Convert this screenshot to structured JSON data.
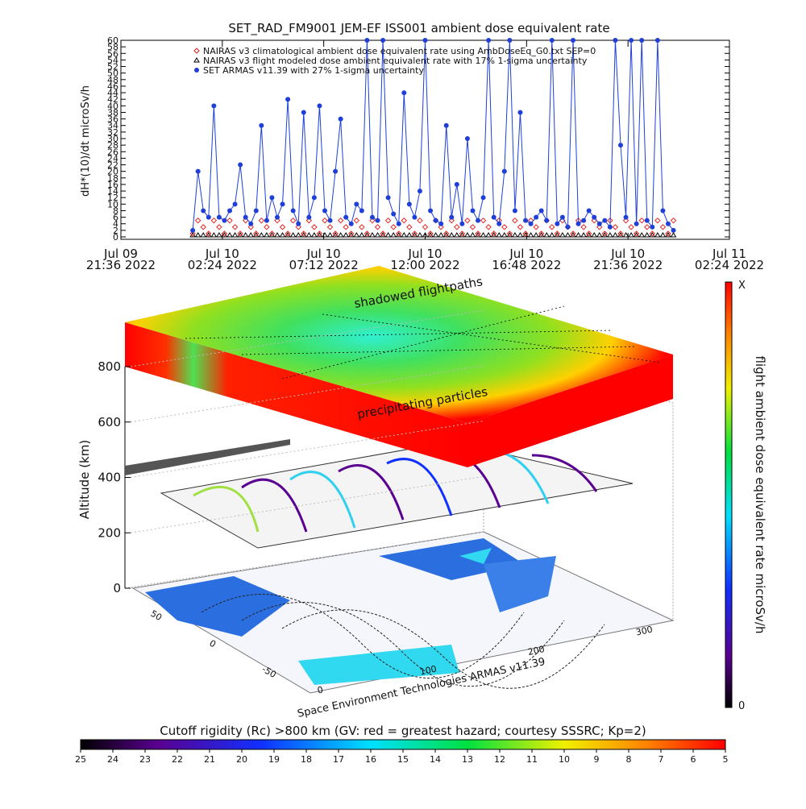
{
  "chart_data": {
    "type": "line",
    "title": "SET_RAD_FM9001  JEM-EF ISS001 ambient dose equivalent rate",
    "y_label": "dH*(10)/dt microSv/h",
    "xlim": [
      "2022-07-09T21:36",
      "2022-07-11T02:24"
    ],
    "xticks": [
      {
        "value": "2022-07-09T21:36",
        "label": [
          "Jul 09",
          "21:36 2022"
        ]
      },
      {
        "value": "2022-07-10T02:24",
        "label": [
          "Jul 10",
          "02:24 2022"
        ]
      },
      {
        "value": "2022-07-10T07:12",
        "label": [
          "Jul 10",
          "07:12 2022"
        ]
      },
      {
        "value": "2022-07-10T12:00",
        "label": [
          "Jul 10",
          "12:00 2022"
        ]
      },
      {
        "value": "2022-07-10T16:48",
        "label": [
          "Jul 10",
          "16:48 2022"
        ]
      },
      {
        "value": "2022-07-10T21:36",
        "label": [
          "Jul 10",
          "21:36 2022"
        ]
      },
      {
        "value": "2022-07-11T02:24",
        "label": [
          "Jul 11",
          "02:24 2022"
        ]
      }
    ],
    "ylim": [
      0,
      60
    ],
    "yticks": [
      0,
      2,
      4,
      6,
      8,
      10,
      12,
      14,
      16,
      18,
      20,
      22,
      24,
      26,
      28,
      30,
      32,
      34,
      36,
      38,
      40,
      42,
      44,
      46,
      48,
      50,
      52,
      54,
      56,
      58,
      60
    ],
    "x": [
      "2022-07-10T01:00",
      "2022-07-10T01:15",
      "2022-07-10T01:30",
      "2022-07-10T01:45",
      "2022-07-10T02:00",
      "2022-07-10T02:15",
      "2022-07-10T02:30",
      "2022-07-10T02:45",
      "2022-07-10T03:00",
      "2022-07-10T03:15",
      "2022-07-10T03:30",
      "2022-07-10T03:45",
      "2022-07-10T04:00",
      "2022-07-10T04:15",
      "2022-07-10T04:30",
      "2022-07-10T04:45",
      "2022-07-10T05:00",
      "2022-07-10T05:15",
      "2022-07-10T05:30",
      "2022-07-10T05:45",
      "2022-07-10T06:00",
      "2022-07-10T06:15",
      "2022-07-10T06:30",
      "2022-07-10T06:45",
      "2022-07-10T07:00",
      "2022-07-10T07:15",
      "2022-07-10T07:30",
      "2022-07-10T07:45",
      "2022-07-10T08:00",
      "2022-07-10T08:15",
      "2022-07-10T08:30",
      "2022-07-10T08:45",
      "2022-07-10T09:00",
      "2022-07-10T09:15",
      "2022-07-10T09:30",
      "2022-07-10T09:45",
      "2022-07-10T10:00",
      "2022-07-10T10:15",
      "2022-07-10T10:30",
      "2022-07-10T10:45",
      "2022-07-10T11:00",
      "2022-07-10T11:15",
      "2022-07-10T11:30",
      "2022-07-10T11:45",
      "2022-07-10T12:00",
      "2022-07-10T12:15",
      "2022-07-10T12:30",
      "2022-07-10T12:45",
      "2022-07-10T13:00",
      "2022-07-10T13:15",
      "2022-07-10T13:30",
      "2022-07-10T13:45",
      "2022-07-10T14:00",
      "2022-07-10T14:15",
      "2022-07-10T14:30",
      "2022-07-10T14:45",
      "2022-07-10T15:00",
      "2022-07-10T15:15",
      "2022-07-10T15:30",
      "2022-07-10T15:45",
      "2022-07-10T16:00",
      "2022-07-10T16:15",
      "2022-07-10T16:30",
      "2022-07-10T16:45",
      "2022-07-10T17:00",
      "2022-07-10T17:15",
      "2022-07-10T17:30",
      "2022-07-10T17:45",
      "2022-07-10T18:00",
      "2022-07-10T18:15",
      "2022-07-10T18:30",
      "2022-07-10T18:45",
      "2022-07-10T19:00",
      "2022-07-10T19:15",
      "2022-07-10T19:30",
      "2022-07-10T19:45",
      "2022-07-10T20:00",
      "2022-07-10T20:15",
      "2022-07-10T20:30",
      "2022-07-10T20:45",
      "2022-07-10T21:00",
      "2022-07-10T21:15",
      "2022-07-10T21:30",
      "2022-07-10T21:45",
      "2022-07-10T22:00",
      "2022-07-10T22:15",
      "2022-07-10T22:30",
      "2022-07-10T22:45",
      "2022-07-10T23:00",
      "2022-07-10T23:15",
      "2022-07-10T23:30",
      "2022-07-10T23:45"
    ],
    "series": [
      {
        "name": "NAIRAS v3 climatological ambient dose equivalent rate using AmbDoseEq_G0.txt SEP=0",
        "color": "#e8201c",
        "marker": "diamond",
        "values": [
          1,
          5,
          3,
          1,
          5,
          3,
          1,
          5,
          3,
          1,
          5,
          3,
          1,
          5,
          3,
          1,
          5,
          3,
          1,
          5,
          3,
          1,
          5,
          3,
          1,
          5,
          3,
          1,
          5,
          3,
          1,
          5,
          3,
          1,
          5,
          3,
          1,
          5,
          3,
          1,
          5,
          3,
          1,
          5,
          3,
          1,
          5,
          3,
          1,
          5,
          3,
          1,
          5,
          3,
          1,
          5,
          3,
          1,
          5,
          3,
          1,
          5,
          3,
          1,
          5,
          3,
          1,
          5,
          3,
          1,
          5,
          3,
          1,
          5,
          3,
          1,
          5,
          3,
          1,
          5,
          3,
          1,
          5,
          3,
          1,
          5,
          3,
          1,
          5,
          3,
          1,
          5
        ]
      },
      {
        "name": "NAIRAS v3 flight modeled dose ambient equivalent rate with 17% 1-sigma uncertainty",
        "color": "#000000",
        "marker": "triangle",
        "values": [
          0.5,
          0.5,
          0.5,
          0.5,
          0.5,
          0.5,
          0.5,
          0.5,
          0.5,
          0.5,
          0.5,
          0.5,
          0.5,
          0.5,
          0.5,
          0.5,
          0.5,
          0.5,
          0.5,
          0.5,
          0.5,
          0.5,
          0.5,
          0.5,
          0.5,
          0.5,
          0.5,
          0.5,
          0.5,
          0.5,
          0.5,
          0.5,
          0.5,
          0.5,
          0.5,
          0.5,
          0.5,
          0.5,
          0.5,
          0.5,
          0.5,
          0.5,
          0.5,
          0.5,
          0.5,
          0.5,
          0.5,
          0.5,
          0.5,
          0.5,
          0.5,
          0.5,
          0.5,
          0.5,
          0.5,
          0.5,
          0.5,
          0.5,
          0.5,
          0.5,
          0.5,
          0.5,
          0.5,
          0.5,
          0.5,
          0.5,
          0.5,
          0.5,
          0.5,
          0.5,
          0.5,
          0.5,
          0.5,
          0.5,
          0.5,
          0.5,
          0.5,
          0.5,
          0.5,
          0.5,
          0.5,
          0.5,
          0.5,
          0.5,
          0.5,
          0.5,
          0.5,
          0.5,
          0.5,
          0.5,
          0.5,
          0.5
        ]
      },
      {
        "name": "SET ARMAS v11.39 with 27% 1-sigma uncertainty",
        "color": "#1f3fd8",
        "marker": "circle",
        "values": [
          2,
          20,
          8,
          6,
          40,
          6,
          5,
          8,
          10,
          22,
          6,
          4,
          8,
          34,
          5,
          12,
          6,
          10,
          42,
          8,
          4,
          38,
          6,
          12,
          40,
          8,
          5,
          20,
          36,
          6,
          4,
          10,
          8,
          60,
          6,
          5,
          60,
          12,
          7,
          4,
          44,
          10,
          6,
          14,
          60,
          8,
          5,
          4,
          34,
          6,
          16,
          4,
          30,
          8,
          5,
          12,
          60,
          6,
          4,
          20,
          60,
          8,
          38,
          5,
          4,
          6,
          8,
          5,
          60,
          4,
          6,
          3,
          60,
          4,
          5,
          8,
          6,
          4,
          5,
          3,
          60,
          28,
          6,
          60,
          4,
          60,
          5,
          3,
          60,
          8,
          4,
          2
        ]
      }
    ]
  },
  "panel3d": {
    "top_layer_label": "shadowed flightpaths",
    "lower_layer_label": "precipitating particles",
    "altitude_label": "Altitude (km)",
    "altitude_lim": [
      0,
      800
    ],
    "altitude_ticks": [
      0,
      200,
      400,
      600,
      800
    ],
    "lat_ticks": [
      50,
      0,
      -50
    ],
    "lon_ticks": [
      0,
      100,
      200,
      300
    ],
    "credit": "Space Environment Technologies ARMAS v11.39"
  },
  "dose_colorbar": {
    "label": "flight ambient dose equivalent rate microSv/h",
    "max_label": "X",
    "min": 0
  },
  "rigidity_colorbar": {
    "title": "Cutoff rigidity (Rc) >800 km (GV: red = greatest hazard; courtesy SSSRC; Kp=2)",
    "lim": [
      25,
      5
    ],
    "ticks": [
      25,
      24,
      23,
      22,
      21,
      20,
      19,
      18,
      17,
      16,
      15,
      14,
      13,
      12,
      11,
      10,
      9,
      8,
      7,
      6,
      5
    ]
  }
}
